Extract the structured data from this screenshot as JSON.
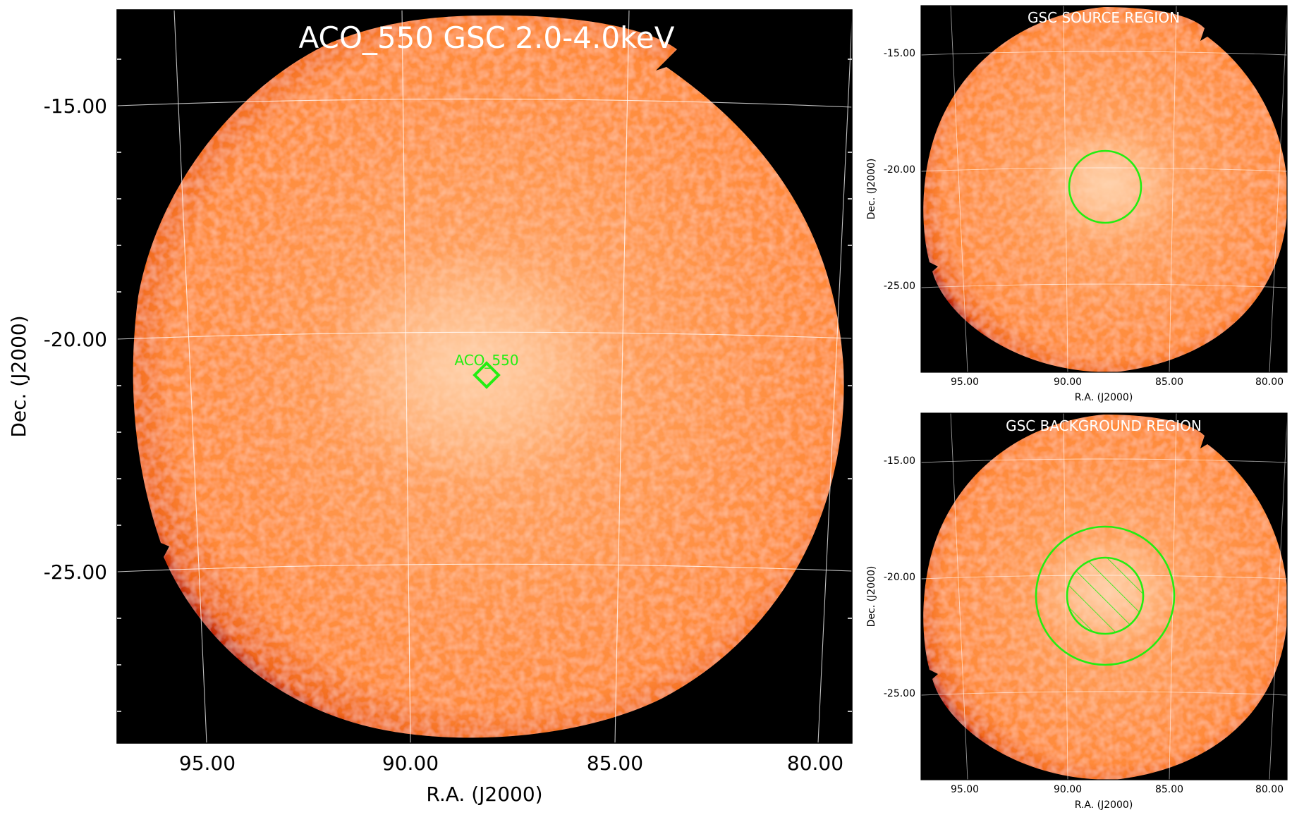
{
  "main_panel": {
    "title": "ACO_550 GSC 2.0-4.0keV",
    "xlabel": "R.A. (J2000)",
    "ylabel": "Dec. (J2000)",
    "x_ticks": [
      "95.00",
      "90.00",
      "85.00",
      "80.00"
    ],
    "y_ticks": [
      "-15.00",
      "-20.00",
      "-25.00"
    ],
    "source_marker_label": "ACO_550"
  },
  "source_panel": {
    "title": "GSC SOURCE REGION",
    "xlabel": "R.A. (J2000)",
    "ylabel": "Dec. (J2000)",
    "x_ticks": [
      "95.00",
      "90.00",
      "85.00",
      "80.00"
    ],
    "y_ticks": [
      "-15.00",
      "-20.00",
      "-25.00"
    ]
  },
  "background_panel": {
    "title": "GSC BACKGROUND REGION",
    "xlabel": "R.A. (J2000)",
    "ylabel": "Dec. (J2000)",
    "x_ticks": [
      "95.00",
      "90.00",
      "85.00",
      "80.00"
    ],
    "y_ticks": [
      "-15.00",
      "-20.00",
      "-25.00"
    ]
  },
  "colors": {
    "sky_background": "#000000",
    "emission_orange": "#ff8a3a",
    "emission_highlight": "#ffc79a",
    "region_green": "#22ee11",
    "grid": "#ffffff"
  }
}
